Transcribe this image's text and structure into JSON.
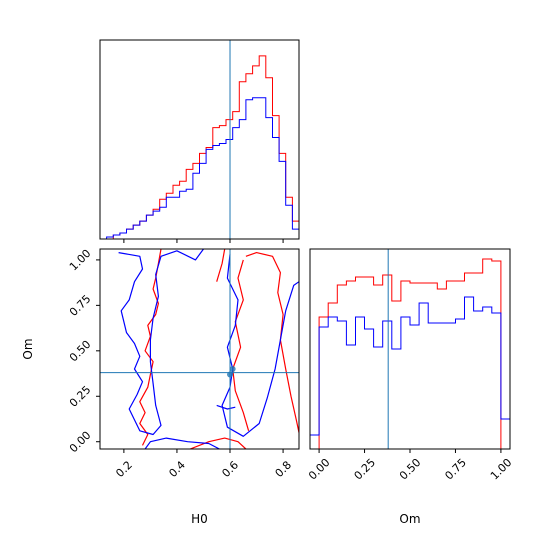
{
  "chart_data": {
    "type": "corner",
    "parameters": [
      "H0",
      "Om"
    ],
    "truths": {
      "H0": 0.6,
      "Om": 0.38
    },
    "colors": {
      "series_a": "#ff0000",
      "series_b": "#0000ff",
      "truth": "#1f77b4"
    },
    "h0_hist": {
      "type": "histogram",
      "xlim": [
        0.11,
        0.86
      ],
      "ylim": [
        0,
        1.0
      ],
      "bin_edges": [
        0.11,
        0.135,
        0.16,
        0.185,
        0.21,
        0.235,
        0.26,
        0.285,
        0.31,
        0.335,
        0.36,
        0.385,
        0.41,
        0.435,
        0.46,
        0.485,
        0.51,
        0.535,
        0.56,
        0.585,
        0.61,
        0.635,
        0.66,
        0.685,
        0.71,
        0.735,
        0.76,
        0.785,
        0.81,
        0.835,
        0.86
      ],
      "series": [
        {
          "color": "red",
          "values": [
            0.0,
            0.0,
            0.02,
            0.03,
            0.05,
            0.07,
            0.09,
            0.12,
            0.15,
            0.2,
            0.23,
            0.27,
            0.29,
            0.35,
            0.38,
            0.43,
            0.46,
            0.56,
            0.57,
            0.6,
            0.64,
            0.79,
            0.83,
            0.87,
            0.92,
            0.81,
            0.62,
            0.43,
            0.21,
            0.09
          ]
        },
        {
          "color": "blue",
          "values": [
            0.0,
            0.01,
            0.02,
            0.03,
            0.05,
            0.07,
            0.09,
            0.12,
            0.14,
            0.16,
            0.21,
            0.21,
            0.24,
            0.25,
            0.33,
            0.38,
            0.45,
            0.47,
            0.48,
            0.5,
            0.56,
            0.6,
            0.7,
            0.71,
            0.71,
            0.61,
            0.51,
            0.39,
            0.17,
            0.05
          ]
        }
      ],
      "xticks": [
        0.2,
        0.4,
        0.6,
        0.8
      ]
    },
    "contour": {
      "type": "contour",
      "xlabel": "H0",
      "ylabel": "Om",
      "xlim": [
        0.11,
        0.86
      ],
      "ylim": [
        -0.04,
        1.06
      ],
      "xticks": [
        0.2,
        0.4,
        0.6,
        0.8
      ],
      "xtick_labels": [
        "0.2",
        "0.4",
        "0.6",
        "0.8"
      ],
      "yticks": [
        0.0,
        0.25,
        0.5,
        0.75,
        1.0
      ],
      "ytick_labels": [
        "0.00",
        "0.25",
        "0.50",
        "0.75",
        "1.00"
      ],
      "series": [
        {
          "color": "red",
          "paths": [
            [
              [
                0.34,
                1.06
              ],
              [
                0.33,
                0.98
              ],
              [
                0.32,
                0.9
              ],
              [
                0.31,
                0.84
              ],
              [
                0.33,
                0.76
              ],
              [
                0.32,
                0.7
              ],
              [
                0.29,
                0.64
              ],
              [
                0.3,
                0.58
              ],
              [
                0.28,
                0.5
              ],
              [
                0.31,
                0.44
              ],
              [
                0.3,
                0.37
              ],
              [
                0.29,
                0.3
              ],
              [
                0.26,
                0.22
              ],
              [
                0.28,
                0.16
              ],
              [
                0.26,
                0.1
              ],
              [
                0.29,
                0.04
              ],
              [
                0.27,
                -0.02
              ]
            ],
            [
              [
                0.58,
                1.06
              ],
              [
                0.57,
                0.98
              ],
              [
                0.55,
                0.88
              ]
            ],
            [
              [
                0.45,
                -0.04
              ],
              [
                0.52,
                0.0
              ],
              [
                0.58,
                0.02
              ],
              [
                0.63,
                0.0
              ],
              [
                0.66,
                -0.04
              ]
            ],
            [
              [
                0.66,
                1.02
              ],
              [
                0.7,
                1.04
              ],
              [
                0.76,
                1.02
              ],
              [
                0.79,
                0.93
              ],
              [
                0.78,
                0.82
              ],
              [
                0.8,
                0.7
              ],
              [
                0.79,
                0.56
              ],
              [
                0.81,
                0.4
              ],
              [
                0.83,
                0.25
              ],
              [
                0.85,
                0.12
              ],
              [
                0.86,
                0.05
              ]
            ],
            [
              [
                0.65,
                1.0
              ],
              [
                0.63,
                0.9
              ],
              [
                0.65,
                0.78
              ],
              [
                0.62,
                0.66
              ],
              [
                0.64,
                0.52
              ],
              [
                0.61,
                0.4
              ],
              [
                0.62,
                0.28
              ],
              [
                0.65,
                0.16
              ],
              [
                0.67,
                0.06
              ]
            ]
          ]
        },
        {
          "color": "blue",
          "paths": [
            [
              [
                0.18,
                1.04
              ],
              [
                0.26,
                1.02
              ],
              [
                0.27,
                0.95
              ],
              [
                0.24,
                0.88
              ],
              [
                0.22,
                0.78
              ],
              [
                0.19,
                0.72
              ],
              [
                0.21,
                0.6
              ],
              [
                0.24,
                0.54
              ],
              [
                0.26,
                0.47
              ],
              [
                0.24,
                0.4
              ],
              [
                0.27,
                0.33
              ],
              [
                0.25,
                0.26
              ],
              [
                0.22,
                0.18
              ],
              [
                0.24,
                0.12
              ],
              [
                0.26,
                0.06
              ],
              [
                0.31,
                0.04
              ],
              [
                0.34,
                0.09
              ],
              [
                0.32,
                0.2
              ],
              [
                0.31,
                0.32
              ],
              [
                0.3,
                0.44
              ],
              [
                0.3,
                0.56
              ],
              [
                0.31,
                0.68
              ],
              [
                0.33,
                0.8
              ],
              [
                0.32,
                0.92
              ],
              [
                0.34,
                1.02
              ],
              [
                0.4,
                1.05
              ],
              [
                0.47,
                1.0
              ],
              [
                0.5,
                1.06
              ]
            ],
            [
              [
                0.28,
                -0.04
              ],
              [
                0.3,
                0.0
              ],
              [
                0.36,
                0.02
              ],
              [
                0.44,
                0.0
              ],
              [
                0.52,
                -0.01
              ],
              [
                0.56,
                -0.04
              ]
            ],
            [
              [
                0.6,
                1.03
              ],
              [
                0.59,
                0.9
              ],
              [
                0.63,
                0.78
              ],
              [
                0.62,
                0.64
              ],
              [
                0.59,
                0.52
              ],
              [
                0.61,
                0.4
              ],
              [
                0.6,
                0.3
              ],
              [
                0.57,
                0.2
              ],
              [
                0.59,
                0.08
              ],
              [
                0.65,
                0.03
              ],
              [
                0.71,
                0.1
              ],
              [
                0.74,
                0.24
              ],
              [
                0.77,
                0.4
              ],
              [
                0.79,
                0.56
              ],
              [
                0.81,
                0.72
              ],
              [
                0.84,
                0.86
              ],
              [
                0.86,
                0.88
              ]
            ],
            [
              [
                0.55,
                0.2
              ],
              [
                0.59,
                0.18
              ],
              [
                0.62,
                0.19
              ]
            ]
          ]
        },
        {
          "color": "truth",
          "points": [
            [
              0.61,
              0.4
            ],
            [
              0.6,
              0.37
            ]
          ]
        }
      ]
    },
    "om_hist": {
      "type": "histogram",
      "xlabel": "Om",
      "xlim": [
        -0.05,
        1.05
      ],
      "ylim": [
        0,
        1.0
      ],
      "xticks": [
        0.0,
        0.25,
        0.5,
        0.75,
        1.0
      ],
      "xtick_labels": [
        "0.00",
        "0.25",
        "0.50",
        "0.75",
        "1.00"
      ],
      "bin_edges": [
        -0.05,
        0.0,
        0.05,
        0.1,
        0.15,
        0.2,
        0.25,
        0.3,
        0.35,
        0.4,
        0.45,
        0.5,
        0.55,
        0.6,
        0.65,
        0.7,
        0.75,
        0.8,
        0.85,
        0.9,
        0.95,
        1.0,
        1.05
      ],
      "series": [
        {
          "color": "red",
          "values": [
            0.0,
            0.66,
            0.73,
            0.82,
            0.84,
            0.86,
            0.86,
            0.82,
            0.87,
            0.74,
            0.84,
            0.83,
            0.83,
            0.83,
            0.8,
            0.84,
            0.84,
            0.88,
            0.88,
            0.95,
            0.94,
            0.0
          ]
        },
        {
          "color": "blue",
          "values": [
            0.07,
            0.61,
            0.66,
            0.64,
            0.52,
            0.66,
            0.6,
            0.51,
            0.64,
            0.5,
            0.66,
            0.62,
            0.73,
            0.63,
            0.63,
            0.63,
            0.65,
            0.76,
            0.69,
            0.71,
            0.68,
            0.15
          ]
        }
      ]
    }
  }
}
